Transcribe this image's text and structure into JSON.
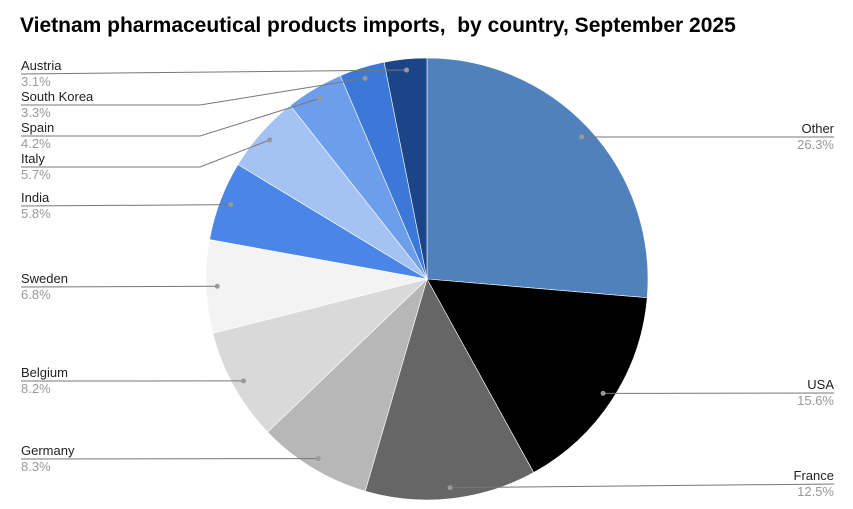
{
  "chart_data": {
    "type": "pie",
    "title": "Vietnam pharmaceutical products imports,  by country, September 2025",
    "start": "top",
    "direction": "clockwise",
    "slices": [
      {
        "label": "Other",
        "value": 26.3,
        "display": "26.3%",
        "color": "#4f81bd"
      },
      {
        "label": "USA",
        "value": 15.6,
        "display": "15.6%",
        "color": "#000000"
      },
      {
        "label": "France",
        "value": 12.5,
        "display": "12.5%",
        "color": "#666666"
      },
      {
        "label": "Germany",
        "value": 8.3,
        "display": "8.3%",
        "color": "#b7b7b7"
      },
      {
        "label": "Belgium",
        "value": 8.2,
        "display": "8.2%",
        "color": "#d9d9d9"
      },
      {
        "label": "Sweden",
        "value": 6.8,
        "display": "6.8%",
        "color": "#f3f3f3"
      },
      {
        "label": "India",
        "value": 5.8,
        "display": "5.8%",
        "color": "#4a86e8"
      },
      {
        "label": "Italy",
        "value": 5.7,
        "display": "5.7%",
        "color": "#a4c2f4"
      },
      {
        "label": "Spain",
        "value": 4.2,
        "display": "4.2%",
        "color": "#6d9eeb"
      },
      {
        "label": "South Korea",
        "value": 3.3,
        "display": "3.3%",
        "color": "#3c78d8"
      },
      {
        "label": "Austria",
        "value": 3.1,
        "display": "3.1%",
        "color": "#1c4587"
      }
    ]
  }
}
